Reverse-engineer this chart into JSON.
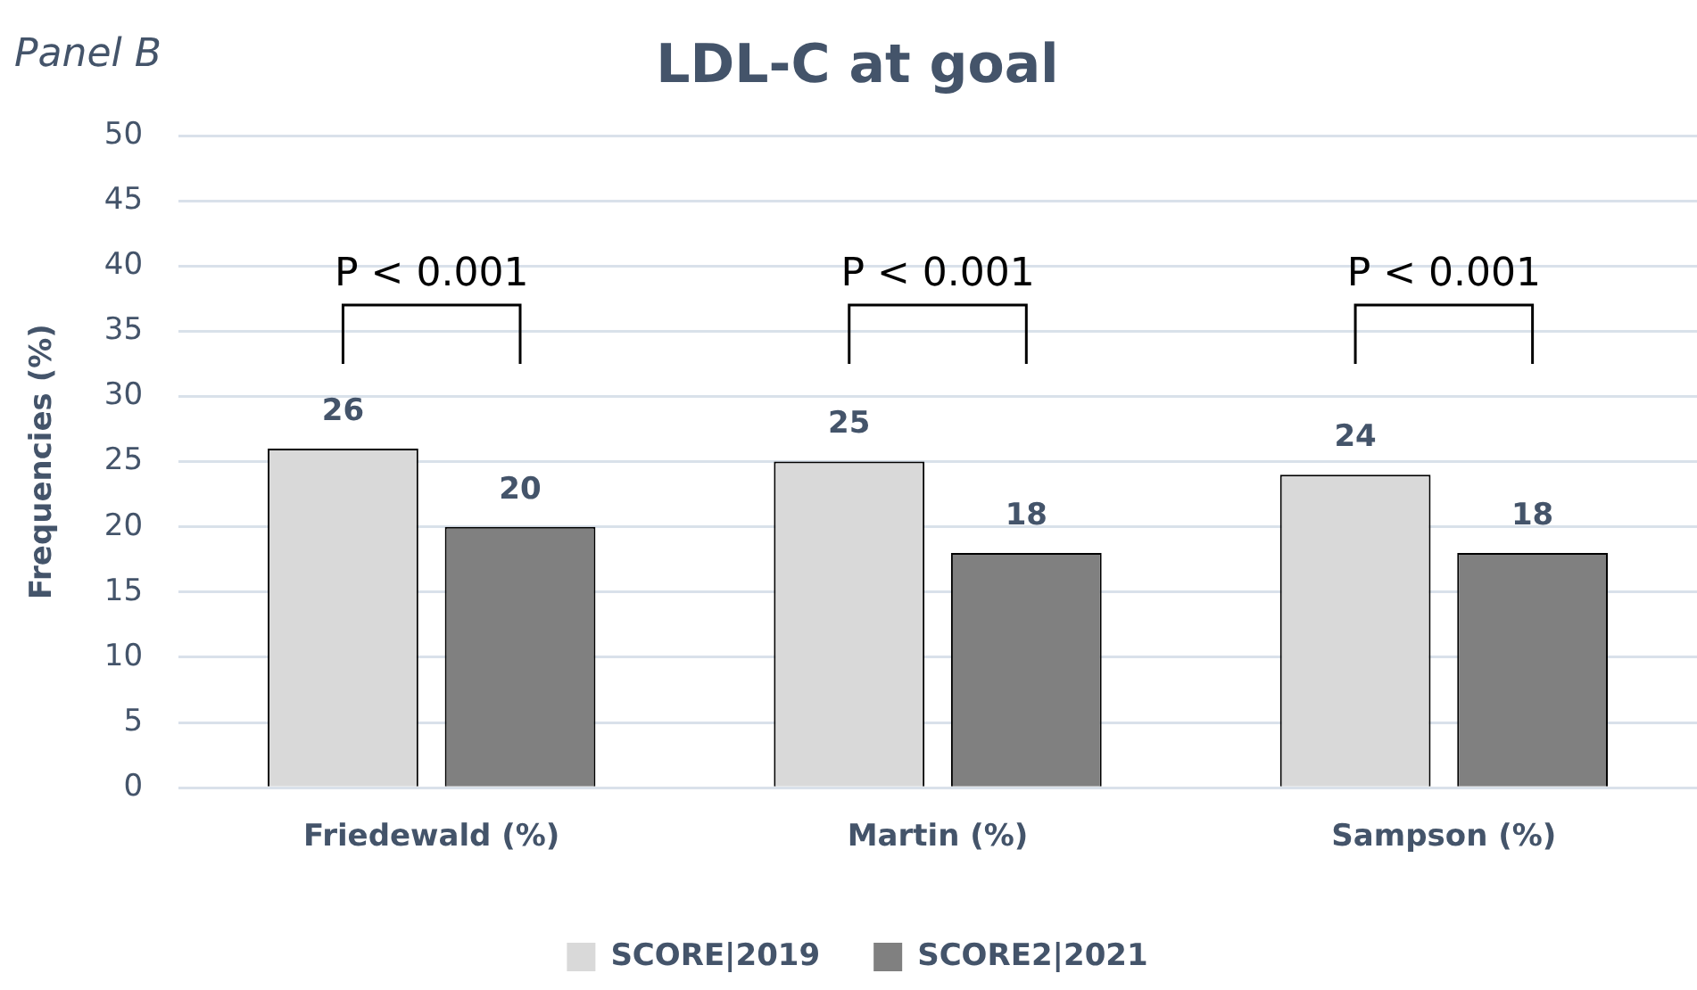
{
  "chart_data": {
    "type": "bar",
    "title": "LDL-C at goal",
    "ylabel": "Frequencies (%)",
    "categories": [
      "Friedewald (%)",
      "Martin (%)",
      "Sampson (%)"
    ],
    "series": [
      {
        "name": "SCORE|2019",
        "color": "#d9d9d9",
        "values": [
          26,
          25,
          24
        ]
      },
      {
        "name": "SCORE2|2021",
        "color": "#808080",
        "values": [
          20,
          18,
          18
        ]
      }
    ],
    "ylim": [
      0,
      50
    ],
    "yticks": [
      0,
      5,
      10,
      15,
      20,
      25,
      30,
      35,
      40,
      45,
      50
    ],
    "grid": "y",
    "legend": "bottom",
    "data_labels": true,
    "annotations": [
      "Panel B",
      "P < 0.001",
      "P < 0.001",
      "P < 0.001"
    ]
  }
}
